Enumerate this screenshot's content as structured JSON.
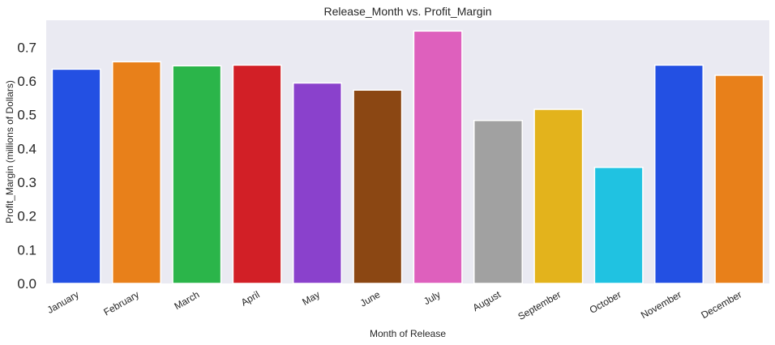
{
  "chart_data": {
    "type": "bar",
    "title": "Release_Month vs. Profit_Margin",
    "xlabel": "Month of Release",
    "ylabel": "Profit_Margin (millions of Dollars)",
    "categories": [
      "January",
      "February",
      "March",
      "April",
      "May",
      "June",
      "July",
      "August",
      "September",
      "October",
      "November",
      "December"
    ],
    "values": [
      0.635,
      0.657,
      0.645,
      0.647,
      0.594,
      0.573,
      0.748,
      0.483,
      0.516,
      0.344,
      0.647,
      0.617
    ],
    "colors": [
      "#2350e3",
      "#e8801a",
      "#2bb54a",
      "#d21f26",
      "#8a41cc",
      "#8b4713",
      "#de60bd",
      "#a1a1a1",
      "#e3b31c",
      "#20c2e1",
      "#2350e3",
      "#e8801a"
    ],
    "ylim": [
      0,
      0.78
    ],
    "yticks": [
      "0.0",
      "0.1",
      "0.2",
      "0.3",
      "0.4",
      "0.5",
      "0.6",
      "0.7"
    ],
    "grid": false,
    "background": "#eaeaf2"
  }
}
